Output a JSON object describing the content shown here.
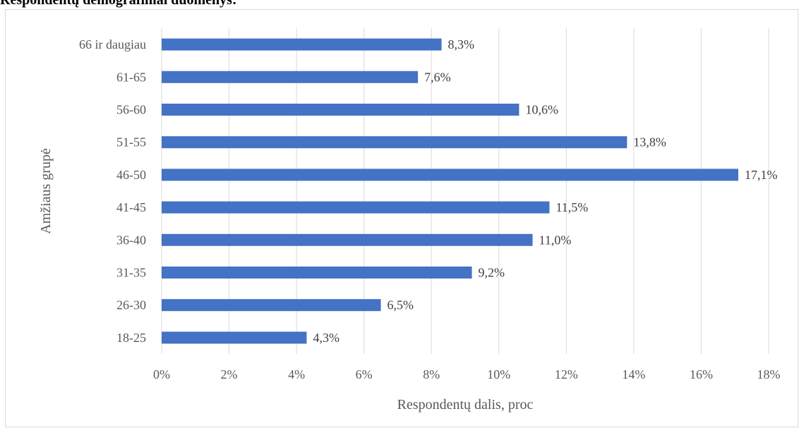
{
  "heading": "Respondentų demografiniai duomenys:",
  "chart_data": {
    "type": "bar",
    "orientation": "horizontal",
    "categories": [
      "18-25",
      "26-30",
      "31-35",
      "36-40",
      "41-45",
      "46-50",
      "51-55",
      "56-60",
      "61-65",
      "66 ir daugiau"
    ],
    "values": [
      4.3,
      6.5,
      9.2,
      11.0,
      11.5,
      17.1,
      13.8,
      10.6,
      7.6,
      8.3
    ],
    "data_labels": [
      "4,3%",
      "6,5%",
      "9,2%",
      "11,0%",
      "11,5%",
      "17,1%",
      "13,8%",
      "10,6%",
      "7,6%",
      "8,3%"
    ],
    "xlabel": "Respondentų dalis, proc",
    "ylabel": "Amžiaus grupė",
    "xlim": [
      0,
      18
    ],
    "xticks": [
      0,
      2,
      4,
      6,
      8,
      10,
      12,
      14,
      16,
      18
    ],
    "xtick_labels": [
      "0%",
      "2%",
      "4%",
      "6%",
      "8%",
      "10%",
      "12%",
      "14%",
      "16%",
      "18%"
    ],
    "grid": "vertical",
    "legend": "none",
    "bar_color": "#4472c4",
    "grid_color": "#d9d9d9"
  }
}
